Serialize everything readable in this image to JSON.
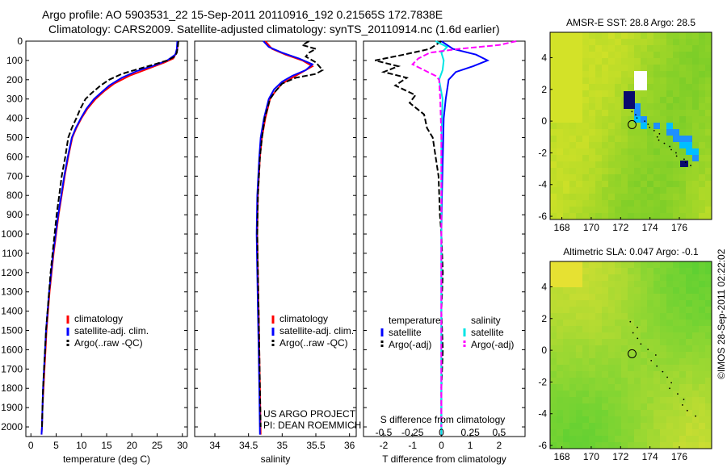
{
  "header": {
    "line1": "Argo profile: AO 5903531_22 15-Sep-2011 20110916_192 0.21565S 172.7838E",
    "line2": "Climatology: CARS2009. Satellite-adjusted climatology: synTS_20110914.nc (1.6d earlier)"
  },
  "side_stamp": "©IMOS 28-Sep-2011 02:22:02",
  "colors": {
    "climatology": "#ff0000",
    "satellite": "#0000ff",
    "argo": "#000000",
    "sat_salinity": "#00e5e5",
    "argo_salinity": "#ff00ff"
  },
  "chart_data": [
    {
      "id": "temperature",
      "type": "line",
      "xlabel": "temperature (deg C)",
      "xlim": [
        -1,
        31
      ],
      "xticks": [
        0,
        5,
        10,
        15,
        20,
        25,
        30
      ],
      "ylim": [
        2050,
        0
      ],
      "yticks": [
        0,
        100,
        200,
        300,
        400,
        500,
        600,
        700,
        800,
        900,
        1000,
        1100,
        1200,
        1300,
        1400,
        1500,
        1600,
        1700,
        1800,
        1900,
        2000
      ],
      "legend": [
        "climatology",
        "satellite-adj. clim.",
        "Argo(..raw -QC)"
      ],
      "legend_position": "bottom-right",
      "series": [
        {
          "name": "climatology",
          "color": "#ff0000",
          "points": [
            [
              29.1,
              0
            ],
            [
              29.0,
              40
            ],
            [
              28.8,
              60
            ],
            [
              28.2,
              90
            ],
            [
              26.5,
              110
            ],
            [
              23.5,
              140
            ],
            [
              19.5,
              180
            ],
            [
              16.5,
              220
            ],
            [
              14.5,
              260
            ],
            [
              12.8,
              300
            ],
            [
              11.2,
              350
            ],
            [
              10.0,
              400
            ],
            [
              9.0,
              450
            ],
            [
              8.2,
              500
            ],
            [
              7.4,
              600
            ],
            [
              6.7,
              700
            ],
            [
              6.1,
              800
            ],
            [
              5.5,
              900
            ],
            [
              5.0,
              1000
            ],
            [
              4.5,
              1100
            ],
            [
              4.1,
              1200
            ],
            [
              3.7,
              1300
            ],
            [
              3.4,
              1400
            ],
            [
              3.1,
              1500
            ],
            [
              2.9,
              1600
            ],
            [
              2.7,
              1700
            ],
            [
              2.5,
              1800
            ],
            [
              2.3,
              1900
            ],
            [
              2.2,
              2000
            ],
            [
              2.1,
              2040
            ]
          ]
        },
        {
          "name": "satellite-adj. clim.",
          "color": "#0000ff",
          "points": [
            [
              29.0,
              0
            ],
            [
              28.9,
              40
            ],
            [
              28.6,
              70
            ],
            [
              27.0,
              100
            ],
            [
              24.5,
              125
            ],
            [
              21.0,
              155
            ],
            [
              18.0,
              190
            ],
            [
              15.5,
              230
            ],
            [
              14.0,
              265
            ],
            [
              12.5,
              300
            ],
            [
              11.0,
              350
            ],
            [
              9.9,
              400
            ],
            [
              8.9,
              450
            ],
            [
              8.1,
              500
            ],
            [
              7.3,
              600
            ],
            [
              6.6,
              700
            ],
            [
              6.0,
              800
            ],
            [
              5.4,
              900
            ],
            [
              4.9,
              1000
            ],
            [
              4.4,
              1100
            ],
            [
              4.0,
              1200
            ],
            [
              3.6,
              1300
            ],
            [
              3.3,
              1400
            ],
            [
              3.0,
              1500
            ],
            [
              2.8,
              1600
            ],
            [
              2.6,
              1700
            ],
            [
              2.4,
              1800
            ],
            [
              2.3,
              1900
            ],
            [
              2.2,
              2000
            ],
            [
              2.1,
              2040
            ]
          ]
        },
        {
          "name": "Argo(..raw -QC)",
          "color": "#000000",
          "dashed": true,
          "points": [
            [
              29.2,
              0
            ],
            [
              29.1,
              30
            ],
            [
              28.9,
              60
            ],
            [
              28.5,
              80
            ],
            [
              27.0,
              100
            ],
            [
              24.5,
              120
            ],
            [
              20.5,
              150
            ],
            [
              18.0,
              170
            ],
            [
              15.5,
              200
            ],
            [
              13.8,
              230
            ],
            [
              12.0,
              270
            ],
            [
              10.8,
              300
            ],
            [
              9.8,
              350
            ],
            [
              9.0,
              400
            ],
            [
              8.1,
              450
            ],
            [
              7.4,
              500
            ],
            [
              6.8,
              600
            ],
            [
              6.1,
              700
            ],
            [
              5.6,
              800
            ],
            [
              5.1,
              900
            ],
            [
              4.7,
              1000
            ],
            [
              4.3,
              1100
            ],
            [
              3.9,
              1200
            ],
            [
              3.6,
              1300
            ],
            [
              3.3,
              1400
            ],
            [
              3.0,
              1500
            ],
            [
              2.8,
              1600
            ],
            [
              2.6,
              1700
            ],
            [
              2.4,
              1800
            ],
            [
              2.3,
              1900
            ],
            [
              2.2,
              2000
            ]
          ]
        }
      ]
    },
    {
      "id": "salinity",
      "type": "line",
      "xlabel": "salinity",
      "xlim": [
        33.7,
        36.1
      ],
      "xticks": [
        34,
        34.5,
        35,
        35.5,
        36
      ],
      "ylim": [
        2050,
        0
      ],
      "legend": [
        "climatology",
        "satellite-adj. clim.",
        "Argo(..raw -QC)"
      ],
      "legend_position": "bottom-right",
      "annotations": [
        "US ARGO PROJECT",
        "PI: DEAN ROEMMICH"
      ],
      "series": [
        {
          "name": "climatology",
          "color": "#ff0000",
          "points": [
            [
              34.75,
              0
            ],
            [
              34.85,
              40
            ],
            [
              35.05,
              70
            ],
            [
              35.3,
              100
            ],
            [
              35.45,
              130
            ],
            [
              35.3,
              160
            ],
            [
              35.15,
              190
            ],
            [
              35.0,
              220
            ],
            [
              34.9,
              260
            ],
            [
              34.82,
              300
            ],
            [
              34.75,
              400
            ],
            [
              34.7,
              500
            ],
            [
              34.67,
              600
            ],
            [
              34.64,
              800
            ],
            [
              34.63,
              1000
            ],
            [
              34.64,
              1200
            ],
            [
              34.65,
              1400
            ],
            [
              34.66,
              1600
            ],
            [
              34.67,
              1800
            ],
            [
              34.68,
              2040
            ]
          ]
        },
        {
          "name": "satellite-adj. clim.",
          "color": "#0000ff",
          "points": [
            [
              34.72,
              0
            ],
            [
              34.8,
              30
            ],
            [
              35.0,
              60
            ],
            [
              35.25,
              90
            ],
            [
              35.45,
              120
            ],
            [
              35.35,
              150
            ],
            [
              35.15,
              180
            ],
            [
              35.0,
              210
            ],
            [
              34.88,
              250
            ],
            [
              34.8,
              300
            ],
            [
              34.73,
              400
            ],
            [
              34.68,
              500
            ],
            [
              34.66,
              600
            ],
            [
              34.63,
              800
            ],
            [
              34.62,
              1000
            ],
            [
              34.63,
              1200
            ],
            [
              34.64,
              1400
            ],
            [
              34.65,
              1600
            ],
            [
              34.66,
              1800
            ],
            [
              34.67,
              2040
            ]
          ]
        },
        {
          "name": "Argo(..raw -QC)",
          "color": "#000000",
          "dashed": true,
          "points": [
            [
              35.4,
              0
            ],
            [
              35.3,
              20
            ],
            [
              35.5,
              40
            ],
            [
              35.4,
              60
            ],
            [
              35.35,
              80
            ],
            [
              35.5,
              110
            ],
            [
              35.6,
              150
            ],
            [
              35.5,
              170
            ],
            [
              35.2,
              190
            ],
            [
              35.0,
              220
            ],
            [
              34.9,
              260
            ],
            [
              34.82,
              300
            ],
            [
              34.74,
              400
            ],
            [
              34.7,
              500
            ],
            [
              34.67,
              600
            ],
            [
              34.64,
              800
            ],
            [
              34.63,
              1000
            ],
            [
              34.64,
              1200
            ],
            [
              34.65,
              1400
            ],
            [
              34.66,
              1600
            ],
            [
              34.67,
              1800
            ],
            [
              34.68,
              2000
            ]
          ]
        }
      ]
    },
    {
      "id": "difference",
      "type": "line",
      "xlabel": "T difference from climatology",
      "xlabel_top": "S difference from climatology",
      "xlim": [
        -2.7,
        2.9
      ],
      "xticks": [
        -2,
        -1,
        0,
        1,
        2
      ],
      "s_ticks": [
        {
          "v": -0.5,
          "label": "-0.5"
        },
        {
          "v": -0.25,
          "label": "-0.25"
        },
        {
          "v": 0,
          "label": "0"
        },
        {
          "v": 0.25,
          "label": "0.25"
        },
        {
          "v": 0.5,
          "label": "0.5"
        }
      ],
      "s_scale": 4,
      "ylim": [
        2050,
        0
      ],
      "legend_t": {
        "heading": "temperature",
        "items": [
          "satellite",
          "Argo(-adj)"
        ]
      },
      "legend_s": {
        "heading": "salinity",
        "items": [
          "satellite",
          "Argo(-adj)"
        ]
      },
      "series": [
        {
          "name": "T satellite",
          "color": "#0000ff",
          "points": [
            [
              0,
              0
            ],
            [
              0.4,
              40
            ],
            [
              1.2,
              70
            ],
            [
              1.6,
              100
            ],
            [
              1.1,
              130
            ],
            [
              0.5,
              160
            ],
            [
              0.25,
              200
            ],
            [
              0.15,
              300
            ],
            [
              0.08,
              400
            ],
            [
              0.05,
              600
            ],
            [
              0.02,
              800
            ],
            [
              0,
              1000
            ],
            [
              0,
              2040
            ]
          ]
        },
        {
          "name": "T Argo(-adj)",
          "color": "#000000",
          "dashed": true,
          "points": [
            [
              0,
              0
            ],
            [
              -0.4,
              40
            ],
            [
              -1.3,
              70
            ],
            [
              -2.3,
              100
            ],
            [
              -1.5,
              130
            ],
            [
              -2.0,
              160
            ],
            [
              -1.2,
              190
            ],
            [
              -1.6,
              230
            ],
            [
              -0.9,
              280
            ],
            [
              -1.1,
              320
            ],
            [
              -0.6,
              380
            ],
            [
              -0.5,
              450
            ],
            [
              -0.3,
              500
            ],
            [
              -0.2,
              600
            ],
            [
              -0.1,
              700
            ],
            [
              -0.05,
              900
            ],
            [
              0,
              1000
            ],
            [
              0.05,
              1200
            ],
            [
              0,
              1400
            ],
            [
              0.05,
              1600
            ],
            [
              0,
              1800
            ],
            [
              0,
              2000
            ]
          ]
        },
        {
          "name": "S satellite",
          "color": "#00e5e5",
          "s_units": true,
          "points": [
            [
              -0.05,
              0
            ],
            [
              0.05,
              30
            ],
            [
              0,
              60
            ],
            [
              0.02,
              100
            ],
            [
              0.01,
              150
            ],
            [
              -0.02,
              200
            ],
            [
              0.01,
              300
            ],
            [
              0,
              500
            ],
            [
              0,
              1000
            ],
            [
              0,
              2040
            ]
          ]
        },
        {
          "name": "S Argo(-adj)",
          "color": "#ff00ff",
          "s_units": true,
          "dashed": true,
          "points": [
            [
              0.65,
              0
            ],
            [
              0.5,
              20
            ],
            [
              0.15,
              40
            ],
            [
              -0.1,
              60
            ],
            [
              -0.2,
              90
            ],
            [
              -0.25,
              120
            ],
            [
              -0.15,
              150
            ],
            [
              -0.05,
              180
            ],
            [
              -0.02,
              200
            ],
            [
              -0.01,
              300
            ],
            [
              0,
              500
            ],
            [
              0,
              1000
            ],
            [
              0,
              2000
            ]
          ]
        }
      ]
    },
    {
      "id": "sst_map",
      "type": "heatmap",
      "title": "AMSR-E SST: 28.8 Argo: 28.5",
      "xticks": [
        168,
        170,
        172,
        174,
        176
      ],
      "yticks": [
        4,
        2,
        0,
        -2,
        -4,
        -6
      ],
      "xlim": [
        167.2,
        178.2
      ],
      "ylim": [
        -6.2,
        5.6
      ],
      "marker": [
        172.78,
        -0.22
      ]
    },
    {
      "id": "sla_map",
      "type": "heatmap",
      "title": "Altimetric SLA: 0.047 Argo: -0.1",
      "xticks": [
        168,
        170,
        172,
        174,
        176
      ],
      "yticks": [
        4,
        2,
        0,
        -2,
        -4,
        -6
      ],
      "xlim": [
        167.2,
        178.2
      ],
      "ylim": [
        -6.2,
        5.6
      ],
      "marker": [
        172.78,
        -0.22
      ]
    }
  ]
}
